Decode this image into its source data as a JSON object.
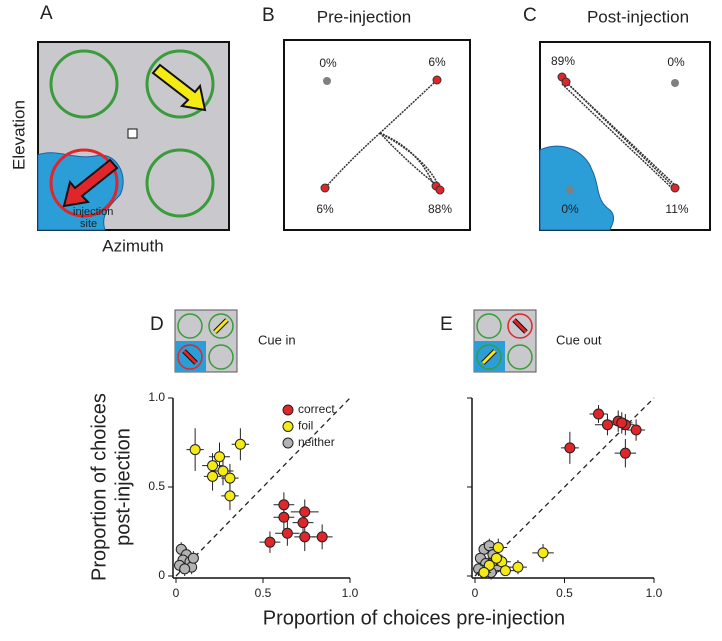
{
  "panels": {
    "A": {
      "label": "A",
      "y_label": "Elevation",
      "x_label": "Azimuth",
      "annotation": [
        "injection",
        "site"
      ]
    },
    "B": {
      "label": "B",
      "title": "Pre-injection",
      "percentages": [
        "0%",
        "6%",
        "6%",
        "88%"
      ]
    },
    "C": {
      "label": "C",
      "title": "Post-injection",
      "percentages": [
        "89%",
        "0%",
        "0%",
        "11%"
      ]
    }
  },
  "shared_x_label": "Proportion of choices pre-injection",
  "shared_y_label": [
    "Proportion of choices",
    "post-injection"
  ],
  "chart_data": [
    {
      "type": "scatter",
      "label": "D",
      "inset_label": "Cue in",
      "legend": true,
      "xlim": [
        0,
        1
      ],
      "ylim": [
        0,
        1
      ],
      "xticks": [
        0,
        0.5,
        {
          "value": 1,
          "label": "1.0"
        }
      ],
      "yticks": [
        0,
        0.5,
        {
          "value": 1,
          "label": "1.0"
        }
      ],
      "series": [
        {
          "name": "correct",
          "color": "#e0262b",
          "x": [
            0.62,
            0.62,
            0.74,
            0.73,
            0.64,
            0.74,
            0.84,
            0.54
          ],
          "values": [
            0.4,
            0.33,
            0.36,
            0.3,
            0.24,
            0.22,
            0.22,
            0.19
          ],
          "xerr": [
            0.06,
            0.06,
            0.08,
            0.06,
            0.07,
            0.06,
            0.06,
            0.06
          ],
          "yerr": [
            0.07,
            0.08,
            0.07,
            0.06,
            0.07,
            0.08,
            0.07,
            0.06
          ]
        },
        {
          "name": "foil",
          "color": "#f5ea14",
          "x": [
            0.11,
            0.37,
            0.25,
            0.21,
            0.27,
            0.21,
            0.31,
            0.31
          ],
          "values": [
            0.71,
            0.74,
            0.67,
            0.62,
            0.59,
            0.56,
            0.55,
            0.45
          ],
          "xerr": [
            0.05,
            0.05,
            0.06,
            0.06,
            0.06,
            0.05,
            0.05,
            0.05
          ],
          "yerr": [
            0.12,
            0.09,
            0.08,
            0.07,
            0.08,
            0.08,
            0.08,
            0.08
          ]
        },
        {
          "name": "neither",
          "color": "#b3b3b3",
          "x": [
            0.03,
            0.06,
            0.04,
            0.08,
            0.02,
            0.09,
            0.05,
            0.1
          ],
          "values": [
            0.15,
            0.12,
            0.09,
            0.08,
            0.06,
            0.05,
            0.04,
            0.1
          ],
          "xerr": [
            0.03,
            0.03,
            0.03,
            0.03,
            0.03,
            0.03,
            0.03,
            0.03
          ],
          "yerr": [
            0.04,
            0.04,
            0.04,
            0.04,
            0.04,
            0.04,
            0.04,
            0.04
          ]
        }
      ]
    },
    {
      "type": "scatter",
      "label": "E",
      "inset_label": "Cue out",
      "legend": false,
      "xlim": [
        0,
        1
      ],
      "ylim": [
        0,
        1
      ],
      "xticks": [
        0,
        0.5,
        {
          "value": 1,
          "label": "1.0"
        }
      ],
      "yticks": [
        0,
        0.5,
        1
      ],
      "series": [
        {
          "name": "correct",
          "color": "#e0262b",
          "x": [
            0.69,
            0.74,
            0.8,
            0.84,
            0.9,
            0.53,
            0.84,
            0.82
          ],
          "values": [
            0.91,
            0.85,
            0.87,
            0.85,
            0.82,
            0.72,
            0.69,
            0.86
          ],
          "xerr": [
            0.05,
            0.07,
            0.06,
            0.05,
            0.05,
            0.05,
            0.06,
            0.06
          ],
          "yerr": [
            0.05,
            0.06,
            0.06,
            0.06,
            0.06,
            0.09,
            0.08,
            0.06
          ]
        },
        {
          "name": "foil",
          "color": "#f5ea14",
          "x": [
            0.38,
            0.13,
            0.24,
            0.15,
            0.08,
            0.17,
            0.12,
            0.05
          ],
          "values": [
            0.13,
            0.16,
            0.05,
            0.08,
            0.06,
            0.03,
            0.1,
            0.02
          ],
          "xerr": [
            0.06,
            0.05,
            0.05,
            0.05,
            0.05,
            0.05,
            0.05,
            0.04
          ],
          "yerr": [
            0.05,
            0.05,
            0.04,
            0.04,
            0.04,
            0.03,
            0.04,
            0.03
          ]
        },
        {
          "name": "neither",
          "color": "#b3b3b3",
          "x": [
            0.05,
            0.08,
            0.03,
            0.06,
            0.1,
            0.02,
            0.12,
            0.09
          ],
          "values": [
            0.15,
            0.17,
            0.1,
            0.07,
            0.12,
            0.04,
            0.05,
            0.02
          ],
          "xerr": [
            0.03,
            0.03,
            0.03,
            0.03,
            0.03,
            0.03,
            0.03,
            0.03
          ],
          "yerr": [
            0.04,
            0.04,
            0.04,
            0.04,
            0.04,
            0.04,
            0.04,
            0.04
          ]
        }
      ]
    }
  ]
}
